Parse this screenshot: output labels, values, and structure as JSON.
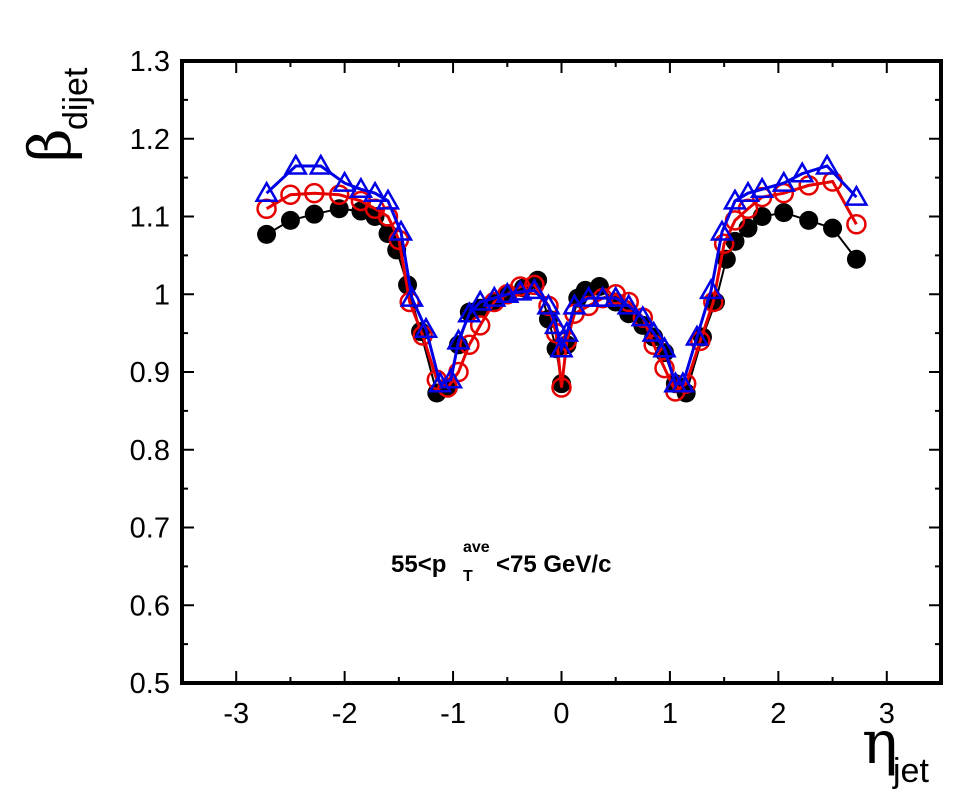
{
  "chart_data": {
    "type": "scatter",
    "ylabel": {
      "symbol": "β",
      "subscript": "dijet"
    },
    "xlabel": {
      "symbol": "η",
      "subscript": "jet"
    },
    "xlim": [
      -3.5,
      3.5
    ],
    "ylim": [
      0.5,
      1.3
    ],
    "x_ticks": [
      "-3",
      "-2",
      "-1",
      "0",
      "1",
      "2",
      "3"
    ],
    "y_ticks": [
      "0.5",
      "0.6",
      "0.7",
      "0.8",
      "0.9",
      "1",
      "1.1",
      "1.2",
      "1.3"
    ],
    "annotation": {
      "main": "55<p",
      "sup": "ave",
      "sub": "T",
      "tail": "<75 GeV/c"
    },
    "series": [
      {
        "marker": "filled-circle",
        "color": "#000000",
        "x": [
          -2.72,
          -2.5,
          -2.28,
          -2.05,
          -1.85,
          -1.72,
          -1.6,
          -1.52,
          -1.42,
          -1.3,
          -1.15,
          -1.05,
          -0.95,
          -0.85,
          -0.75,
          -0.62,
          -0.5,
          -0.35,
          -0.22,
          -0.12,
          -0.05,
          0.0,
          0.05,
          0.15,
          0.22,
          0.35,
          0.5,
          0.62,
          0.75,
          0.85,
          0.95,
          1.05,
          1.15,
          1.3,
          1.42,
          1.52,
          1.6,
          1.72,
          1.85,
          2.05,
          2.28,
          2.5,
          2.72
        ],
        "y": [
          1.077,
          1.095,
          1.103,
          1.11,
          1.107,
          1.1,
          1.078,
          1.057,
          1.012,
          0.952,
          0.873,
          0.88,
          0.935,
          0.977,
          0.982,
          0.99,
          1.0,
          1.008,
          1.018,
          0.968,
          0.93,
          0.885,
          0.935,
          0.995,
          1.005,
          1.01,
          0.99,
          0.975,
          0.96,
          0.945,
          0.925,
          0.885,
          0.873,
          0.945,
          0.99,
          1.045,
          1.068,
          1.085,
          1.1,
          1.105,
          1.095,
          1.085,
          1.045
        ]
      },
      {
        "marker": "open-circle",
        "color": "#e60000",
        "x": [
          -2.72,
          -2.5,
          -2.28,
          -2.05,
          -1.85,
          -1.72,
          -1.6,
          -1.5,
          -1.4,
          -1.28,
          -1.15,
          -1.05,
          -0.95,
          -0.85,
          -0.75,
          -0.62,
          -0.5,
          -0.38,
          -0.25,
          -0.12,
          -0.05,
          0.0,
          0.05,
          0.12,
          0.25,
          0.38,
          0.5,
          0.62,
          0.75,
          0.85,
          0.95,
          1.05,
          1.15,
          1.28,
          1.4,
          1.5,
          1.6,
          1.72,
          1.85,
          2.05,
          2.28,
          2.5,
          2.72
        ],
        "y": [
          1.11,
          1.128,
          1.13,
          1.128,
          1.12,
          1.11,
          1.1,
          1.07,
          0.99,
          0.947,
          0.89,
          0.88,
          0.9,
          0.935,
          0.96,
          0.99,
          1.0,
          1.01,
          1.012,
          0.985,
          0.95,
          0.88,
          0.94,
          0.975,
          0.985,
          0.995,
          1.0,
          0.99,
          0.97,
          0.935,
          0.905,
          0.875,
          0.885,
          0.94,
          0.99,
          1.065,
          1.095,
          1.11,
          1.125,
          1.13,
          1.14,
          1.145,
          1.09
        ]
      },
      {
        "marker": "open-triangle",
        "color": "#0000e6",
        "x": [
          -2.72,
          -2.45,
          -2.22,
          -2.0,
          -1.85,
          -1.72,
          -1.6,
          -1.48,
          -1.38,
          -1.25,
          -1.12,
          -1.02,
          -0.95,
          -0.85,
          -0.75,
          -0.62,
          -0.5,
          -0.38,
          -0.25,
          -0.12,
          -0.05,
          0.0,
          0.05,
          0.12,
          0.25,
          0.38,
          0.5,
          0.62,
          0.75,
          0.85,
          0.95,
          1.05,
          1.12,
          1.25,
          1.38,
          1.48,
          1.6,
          1.72,
          1.85,
          2.05,
          2.22,
          2.45,
          2.72
        ],
        "y": [
          1.13,
          1.165,
          1.165,
          1.143,
          1.135,
          1.13,
          1.12,
          1.08,
          0.995,
          0.955,
          0.885,
          0.89,
          0.94,
          0.975,
          0.99,
          0.995,
          1.0,
          1.003,
          1.005,
          0.985,
          0.96,
          0.93,
          0.95,
          0.985,
          0.995,
          0.995,
          0.995,
          0.985,
          0.97,
          0.95,
          0.93,
          0.885,
          0.885,
          0.945,
          1.005,
          1.08,
          1.12,
          1.13,
          1.135,
          1.143,
          1.155,
          1.165,
          1.125
        ]
      }
    ]
  }
}
